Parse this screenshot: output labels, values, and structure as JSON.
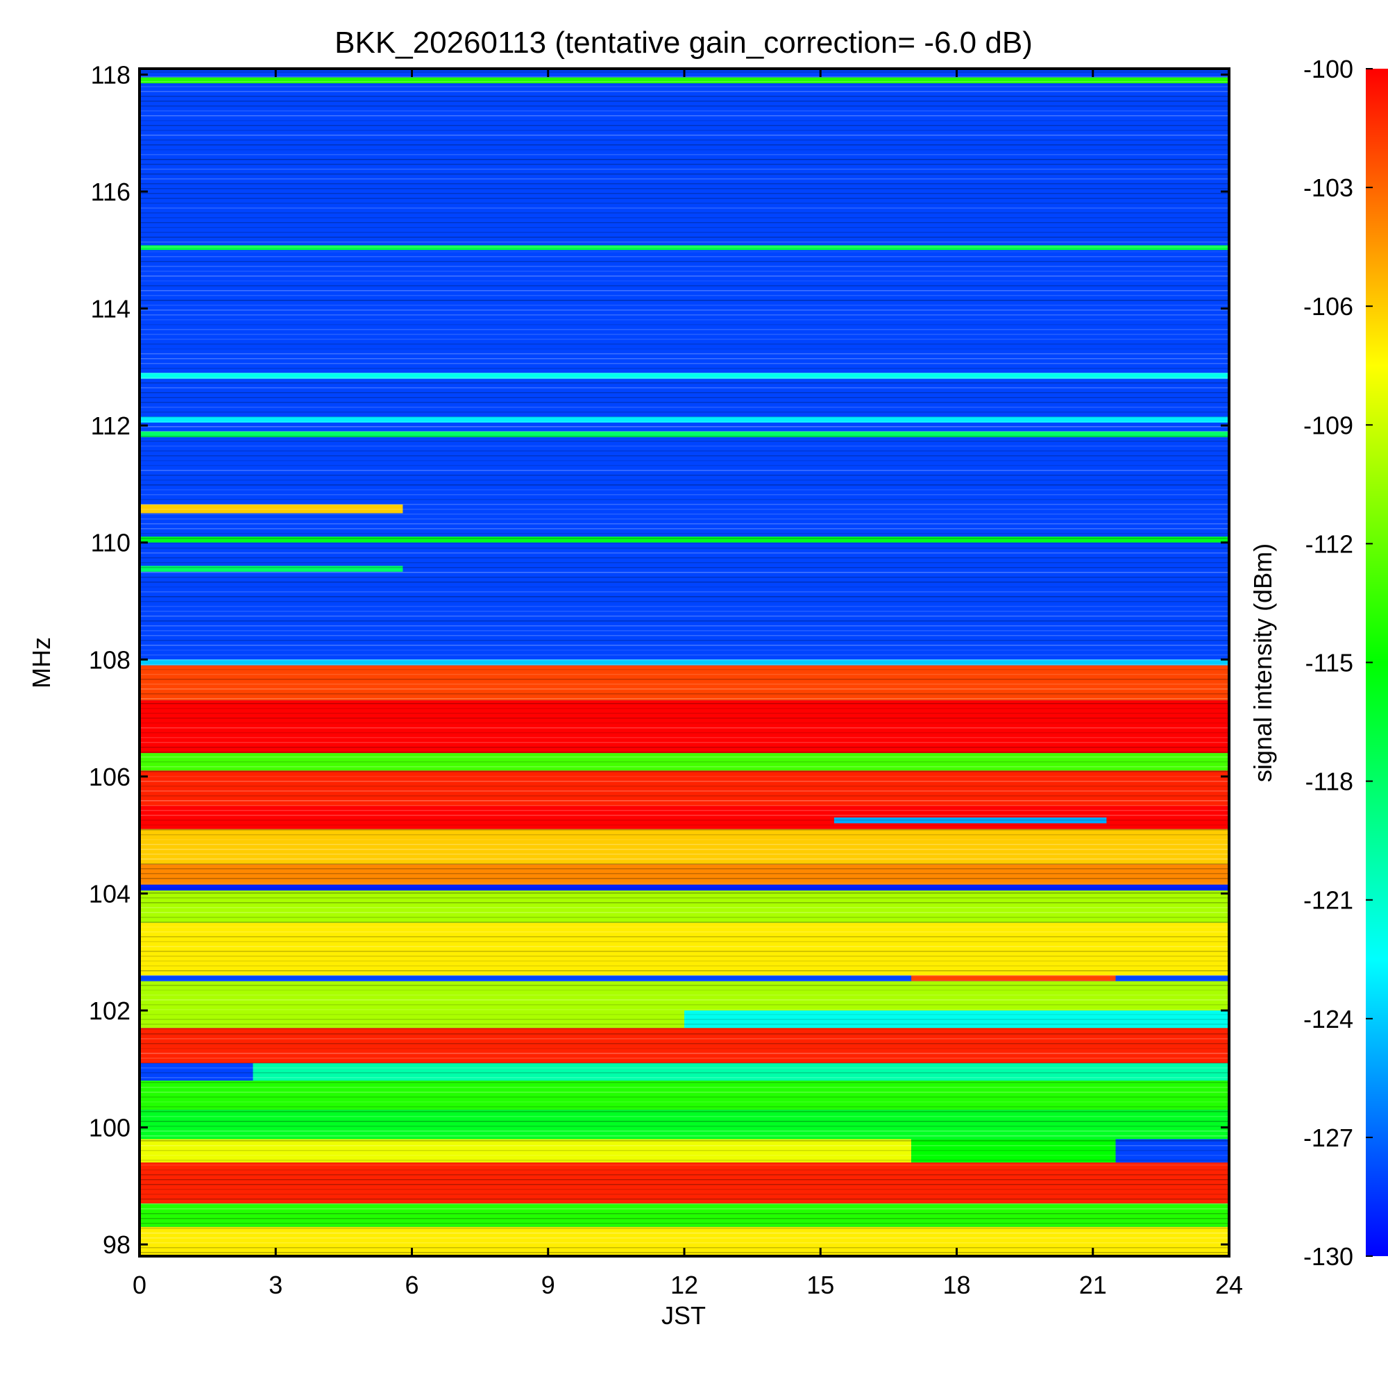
{
  "chart_data": {
    "type": "heatmap",
    "title": "BKK_20260113 (tentative gain_correction= -6.0 dB)",
    "xlabel": "JST",
    "ylabel": "MHz",
    "colorbar_label": "signal intensity (dBm)",
    "xlim": [
      0,
      24
    ],
    "ylim": [
      97.8,
      118.1
    ],
    "x_ticks": [
      0,
      3,
      6,
      9,
      12,
      15,
      18,
      21,
      24
    ],
    "x_tick_labels": [
      "0",
      "3",
      "6",
      "9",
      "12",
      "15",
      "18",
      "21",
      "24"
    ],
    "y_ticks": [
      98,
      100,
      102,
      104,
      106,
      108,
      110,
      112,
      114,
      116,
      118
    ],
    "y_tick_labels": [
      "98",
      "100",
      "102",
      "104",
      "106",
      "108",
      "110",
      "112",
      "114",
      "116",
      "118"
    ],
    "color_range": [
      -130,
      -100
    ],
    "colorbar_ticks": [
      -100,
      -103,
      -106,
      -109,
      -112,
      -115,
      -118,
      -121,
      -124,
      -127,
      -130
    ],
    "colorbar_tick_labels": [
      "-100",
      "-103",
      "-106",
      "-109",
      "-112",
      "-115",
      "-118",
      "-121",
      "-124",
      "-127",
      "-130"
    ],
    "colormap_stops": [
      "#0000ff",
      "#00ffff",
      "#00ff00",
      "#ffff00",
      "#ff0000"
    ],
    "background_level_dBm": -128,
    "bands": [
      {
        "freq_from": 117.85,
        "freq_to": 117.95,
        "t_from": 0,
        "t_to": 24,
        "level_dBm": -114
      },
      {
        "freq_from": 115.0,
        "freq_to": 115.08,
        "t_from": 0,
        "t_to": 24,
        "level_dBm": -117
      },
      {
        "freq_from": 112.8,
        "freq_to": 112.9,
        "t_from": 0,
        "t_to": 24,
        "level_dBm": -122
      },
      {
        "freq_from": 112.05,
        "freq_to": 112.15,
        "t_from": 0,
        "t_to": 24,
        "level_dBm": -123
      },
      {
        "freq_from": 111.8,
        "freq_to": 111.9,
        "t_from": 0,
        "t_to": 24,
        "level_dBm": -118
      },
      {
        "freq_from": 110.5,
        "freq_to": 110.65,
        "t_from": 0,
        "t_to": 5.8,
        "level_dBm": -106
      },
      {
        "freq_from": 110.0,
        "freq_to": 110.1,
        "t_from": 0,
        "t_to": 24,
        "level_dBm": -116
      },
      {
        "freq_from": 109.5,
        "freq_to": 109.6,
        "t_from": 0,
        "t_to": 5.8,
        "level_dBm": -118
      },
      {
        "freq_from": 107.9,
        "freq_to": 108.0,
        "t_from": 0,
        "t_to": 24,
        "level_dBm": -124
      },
      {
        "freq_from": 107.3,
        "freq_to": 107.9,
        "t_from": 0,
        "t_to": 24,
        "level_dBm": -102
      },
      {
        "freq_from": 106.4,
        "freq_to": 107.3,
        "t_from": 0,
        "t_to": 24,
        "level_dBm": -100
      },
      {
        "freq_from": 106.1,
        "freq_to": 106.4,
        "t_from": 0,
        "t_to": 24,
        "level_dBm": -113
      },
      {
        "freq_from": 105.5,
        "freq_to": 106.1,
        "t_from": 0,
        "t_to": 24,
        "level_dBm": -101
      },
      {
        "freq_from": 105.1,
        "freq_to": 105.5,
        "t_from": 0,
        "t_to": 24,
        "level_dBm": -100
      },
      {
        "freq_from": 105.2,
        "freq_to": 105.3,
        "t_from": 15.3,
        "t_to": 21.3,
        "level_dBm": -125
      },
      {
        "freq_from": 104.5,
        "freq_to": 105.1,
        "t_from": 0,
        "t_to": 24,
        "level_dBm": -106
      },
      {
        "freq_from": 104.15,
        "freq_to": 104.5,
        "t_from": 0,
        "t_to": 24,
        "level_dBm": -104
      },
      {
        "freq_from": 104.05,
        "freq_to": 104.15,
        "t_from": 0,
        "t_to": 24,
        "level_dBm": -129
      },
      {
        "freq_from": 103.5,
        "freq_to": 104.05,
        "t_from": 0,
        "t_to": 24,
        "level_dBm": -110
      },
      {
        "freq_from": 102.6,
        "freq_to": 103.5,
        "t_from": 0,
        "t_to": 24,
        "level_dBm": -107
      },
      {
        "freq_from": 102.5,
        "freq_to": 102.6,
        "t_from": 17.0,
        "t_to": 21.5,
        "level_dBm": -102
      },
      {
        "freq_from": 101.7,
        "freq_to": 102.5,
        "t_from": 0,
        "t_to": 24,
        "level_dBm": -110
      },
      {
        "freq_from": 101.7,
        "freq_to": 102.0,
        "t_from": 12.0,
        "t_to": 24,
        "level_dBm": -122
      },
      {
        "freq_from": 101.1,
        "freq_to": 101.7,
        "t_from": 0,
        "t_to": 24,
        "level_dBm": -101
      },
      {
        "freq_from": 100.8,
        "freq_to": 101.1,
        "t_from": 2.5,
        "t_to": 24,
        "level_dBm": -120
      },
      {
        "freq_from": 100.3,
        "freq_to": 100.8,
        "t_from": 0,
        "t_to": 24,
        "level_dBm": -114
      },
      {
        "freq_from": 99.8,
        "freq_to": 100.3,
        "t_from": 0,
        "t_to": 24,
        "level_dBm": -116
      },
      {
        "freq_from": 99.4,
        "freq_to": 99.8,
        "t_from": 0,
        "t_to": 17.0,
        "level_dBm": -108
      },
      {
        "freq_from": 99.4,
        "freq_to": 99.8,
        "t_from": 17.0,
        "t_to": 21.5,
        "level_dBm": -115
      },
      {
        "freq_from": 98.7,
        "freq_to": 99.4,
        "t_from": 0,
        "t_to": 24,
        "level_dBm": -101
      },
      {
        "freq_from": 98.3,
        "freq_to": 98.7,
        "t_from": 0,
        "t_to": 24,
        "level_dBm": -114
      },
      {
        "freq_from": 97.8,
        "freq_to": 98.3,
        "t_from": 0,
        "t_to": 24,
        "level_dBm": -107
      }
    ]
  }
}
